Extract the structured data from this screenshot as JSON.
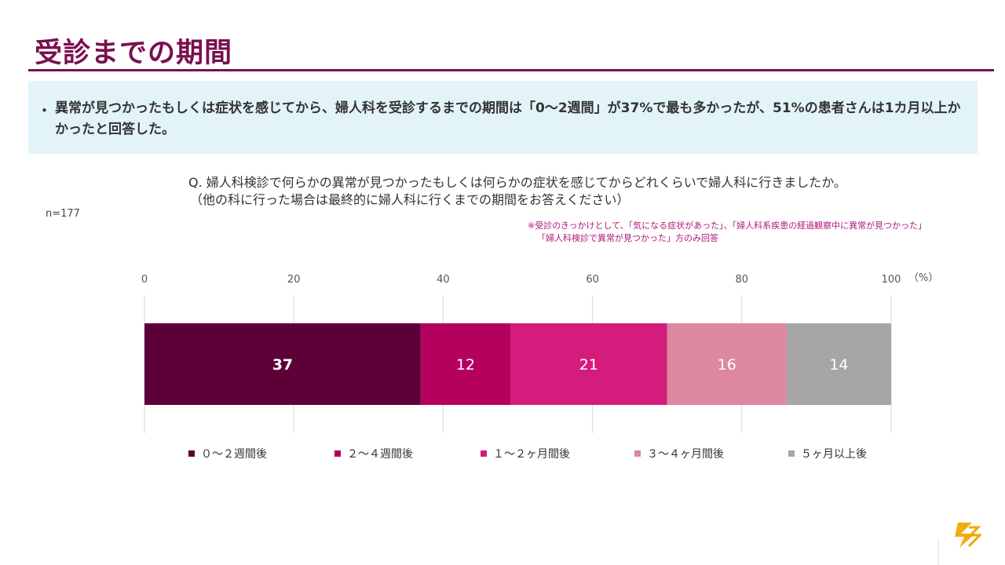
{
  "page": {
    "title": "受診までの期間",
    "summary_bullet": "・",
    "summary_text": "異常が見つかったもしくは症状を感じてから、婦人科を受診するまでの期間は「0～2週間」が37%で最も多かったが、51%の患者さんは1カ月以上かかったと回答した。",
    "question_line1": "Q. 婦人科検診で何らかの異常が見つかったもしくは何らかの症状を感じてからどれくらいで婦人科に行きましたか。",
    "question_line2": "（他の科に行った場合は最終的に婦人科に行くまでの期間をお答えください）",
    "n_label": "n=177",
    "note_line1": "※受診のきっかけとして、「気になる症状があった」、「婦人科系疾患の経過観察中に異常が見つかった」",
    "note_line2": "「婦人科検診で異常が見つかった」方のみ回答"
  },
  "colors": {
    "brand": "#7a0f4f",
    "summary_bg": "#e3f4f9",
    "note": "#b0187a",
    "logo": "#f0a800"
  },
  "chart_data": {
    "type": "bar",
    "orientation": "horizontal-stacked-100",
    "unit_label": "（%）",
    "xlim": [
      0,
      100
    ],
    "ticks": [
      "0",
      "20",
      "40",
      "60",
      "80",
      "100"
    ],
    "tick_values": [
      0,
      20,
      40,
      60,
      80,
      100
    ],
    "grid": true,
    "legend_position": "bottom",
    "series": [
      {
        "name": "０～２週間後",
        "value": 37,
        "label": "37",
        "color": "#5e0038",
        "label_color": "#ffffff",
        "label_bold": true
      },
      {
        "name": "２～４週間後",
        "value": 12,
        "label": "12",
        "color": "#b5005e",
        "label_color": "#ffffff",
        "label_bold": false
      },
      {
        "name": "１～２ヶ月間後",
        "value": 21,
        "label": "21",
        "color": "#d41c7c",
        "label_color": "#ffffff",
        "label_bold": false
      },
      {
        "name": "３～４ヶ月間後",
        "value": 16,
        "label": "16",
        "color": "#dd87a0",
        "label_color": "#ffffff",
        "label_bold": false
      },
      {
        "name": "５ヶ月以上後",
        "value": 14,
        "label": "14",
        "color": "#a6a6a6",
        "label_color": "#ffffff",
        "label_bold": false
      }
    ]
  }
}
